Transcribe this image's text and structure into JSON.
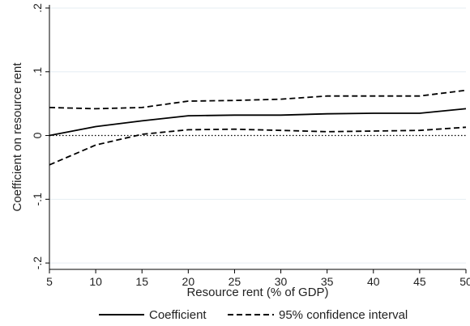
{
  "chart_data": {
    "type": "line",
    "title": "",
    "xlabel": "Resource rent (% of GDP)",
    "ylabel": "Coefficient on resource rent",
    "x": [
      5,
      10,
      15,
      20,
      25,
      30,
      35,
      40,
      45,
      50
    ],
    "xticks": [
      5,
      10,
      15,
      20,
      25,
      30,
      35,
      40,
      45,
      50
    ],
    "xtick_labels": [
      "5",
      "10",
      "15",
      "20",
      "25",
      "30",
      "35",
      "40",
      "45",
      "50"
    ],
    "yticks": [
      -0.2,
      -0.1,
      0,
      0.1,
      0.2
    ],
    "ytick_labels": [
      "-.2",
      "-.1",
      "0",
      ".1",
      ".2"
    ],
    "xlim": [
      5,
      50
    ],
    "ylim": [
      -0.21,
      0.205
    ],
    "grid": true,
    "zero_line": "dotted",
    "legend_position": "bottom",
    "series": [
      {
        "name": "Coefficient",
        "style": "solid",
        "color": "#000000",
        "values": [
          0.0,
          0.014,
          0.023,
          0.031,
          0.032,
          0.032,
          0.034,
          0.035,
          0.035,
          0.042
        ]
      },
      {
        "name": "95% confidence interval",
        "style": "dashed",
        "color": "#000000",
        "values": [
          0.044,
          0.042,
          0.044,
          0.054,
          0.055,
          0.057,
          0.062,
          0.062,
          0.062,
          0.071
        ]
      },
      {
        "name": "95% confidence interval lower",
        "style": "dashed",
        "color": "#000000",
        "in_legend": false,
        "values": [
          -0.046,
          -0.015,
          0.002,
          0.009,
          0.01,
          0.008,
          0.006,
          0.007,
          0.008,
          0.013
        ]
      }
    ],
    "legend": [
      {
        "label": "Coefficient",
        "style": "solid"
      },
      {
        "label": "95% confidence interval",
        "style": "dashed"
      }
    ],
    "colors": {
      "gridline": "#e6eef3",
      "axis": "#000000",
      "text": "#222222"
    }
  }
}
